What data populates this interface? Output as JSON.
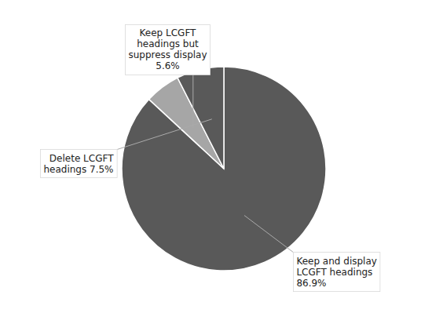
{
  "chart_data": {
    "type": "pie",
    "categories": [
      "Keep and display\nLCGFT headings\n86.9%",
      "Keep LCGFT\nheadings but\nsuppress display\n5.6%",
      "Delete LCGFT\nheadings 7.5%"
    ],
    "values": [
      86.9,
      5.6,
      7.5
    ],
    "colors": [
      "#595959",
      "#a6a6a6",
      "#595959"
    ]
  }
}
